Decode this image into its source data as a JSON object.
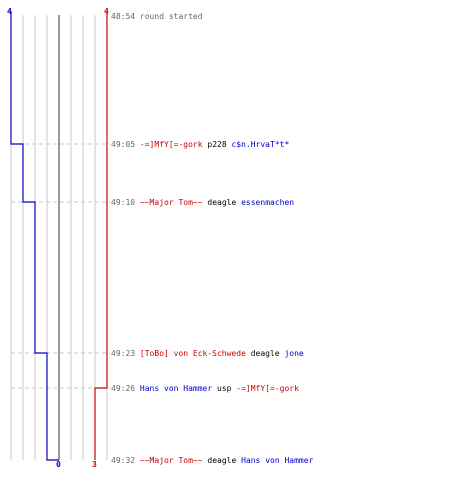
{
  "colors": {
    "blue_team": "#0000cc",
    "red_team": "#cc0000",
    "grid": "#c8c8c8",
    "time": "#666666",
    "weapon": "#000000"
  },
  "scoreboard": {
    "blue_start": "4",
    "red_start": "4",
    "blue_end": "0",
    "red_end": "3"
  },
  "events": [
    {
      "time": "48:54",
      "type": "message",
      "text": "round started"
    },
    {
      "time": "49:05",
      "type": "kill",
      "killer": "-=]MfY[=-gork",
      "killer_team": "red",
      "weapon": "p228",
      "victim": "c$n.HrvaT*t*",
      "victim_team": "blue"
    },
    {
      "time": "49:10",
      "type": "kill",
      "killer": "~~Major Tom~~",
      "killer_team": "red",
      "weapon": "deagle",
      "victim": "essenmachen",
      "victim_team": "blue"
    },
    {
      "time": "49:23",
      "type": "kill",
      "killer": "[ToBo] von Eck-Schwede",
      "killer_team": "red",
      "weapon": "deagle",
      "victim": "jone",
      "victim_team": "blue"
    },
    {
      "time": "49:26",
      "type": "kill",
      "killer": "Hans von Hammer",
      "killer_team": "blue",
      "weapon": "usp",
      "victim": "-=]MfY[=-gork",
      "victim_team": "red"
    },
    {
      "time": "49:32",
      "type": "kill",
      "killer": "~~Major Tom~~",
      "killer_team": "red",
      "weapon": "deagle",
      "victim": "Hans von Hammer",
      "victim_team": "blue"
    }
  ]
}
